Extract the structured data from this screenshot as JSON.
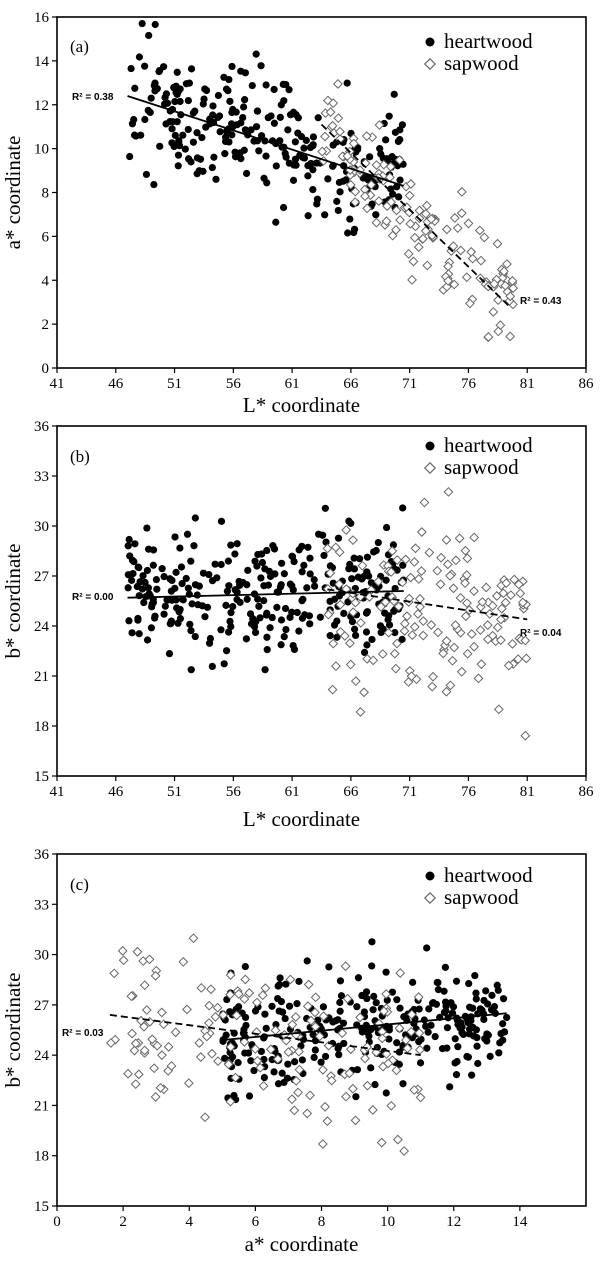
{
  "chart_data": [
    {
      "type": "scatter",
      "panel_label": "(a)",
      "xlabel": "L* coordinate",
      "ylabel": "a* coordinate",
      "xlim": [
        41,
        86
      ],
      "ylim": [
        0,
        16
      ],
      "xticks": [
        "41",
        "46",
        "51",
        "56",
        "61",
        "66",
        "71",
        "76",
        "81",
        "86"
      ],
      "yticks": [
        "0",
        "2",
        "4",
        "6",
        "8",
        "10",
        "12",
        "14",
        "16"
      ],
      "legend_position": "top-right",
      "series": [
        {
          "name": "heartwood",
          "marker": "filled-circle",
          "cloud": {
            "x_min": 47,
            "x_max": 70.5,
            "y_center_at_x_min": 12.2,
            "y_center_at_x_max": 8.6,
            "spread": 1.4
          },
          "count": 270
        },
        {
          "name": "sapwood",
          "marker": "open-diamond",
          "cloud": {
            "x_min": 63.5,
            "x_max": 80,
            "y_center_at_x_min": 10.2,
            "y_center_at_x_max": 3.2,
            "spread": 1.3
          },
          "count": 150
        }
      ],
      "trendlines": [
        {
          "series": "heartwood",
          "style": "solid",
          "from": [
            47,
            12.4
          ],
          "to": [
            70.5,
            8.3
          ],
          "r2_label": "R² = 0.38"
        },
        {
          "series": "sapwood",
          "style": "dashed",
          "from": [
            63.5,
            11.1
          ],
          "to": [
            79.5,
            2.8
          ],
          "r2_label": "R² = 0.43"
        }
      ]
    },
    {
      "type": "scatter",
      "panel_label": "(b)",
      "xlabel": "L* coordinate",
      "ylabel": "b* coordinate",
      "xlim": [
        41,
        86
      ],
      "ylim": [
        15,
        36
      ],
      "xticks": [
        "41",
        "46",
        "51",
        "56",
        "61",
        "66",
        "71",
        "76",
        "81",
        "86"
      ],
      "yticks": [
        "15",
        "18",
        "21",
        "24",
        "27",
        "30",
        "33",
        "36"
      ],
      "legend_position": "top-right",
      "series": [
        {
          "name": "heartwood",
          "marker": "filled-circle",
          "cloud": {
            "x_min": 47,
            "x_max": 70.5,
            "y_center_at_x_min": 25.8,
            "y_center_at_x_max": 26.1,
            "spread": 1.7
          },
          "count": 300
        },
        {
          "name": "sapwood",
          "marker": "open-diamond",
          "cloud": {
            "x_min": 64,
            "x_max": 81,
            "y_center_at_x_min": 25.8,
            "y_center_at_x_max": 25.0,
            "spread": 2.6
          },
          "count": 160
        }
      ],
      "trendlines": [
        {
          "series": "heartwood",
          "style": "solid",
          "from": [
            47,
            25.7
          ],
          "to": [
            70.5,
            26.1
          ],
          "r2_label": "R² = 0.00"
        },
        {
          "series": "sapwood",
          "style": "dashed",
          "from": [
            64,
            26.2
          ],
          "to": [
            81,
            24.4
          ],
          "r2_label": "R² = 0.04"
        }
      ]
    },
    {
      "type": "scatter",
      "panel_label": "(c)",
      "xlabel": "a* coordinate",
      "ylabel": "b* coordinate",
      "xlim": [
        0,
        16
      ],
      "ylim": [
        15,
        36
      ],
      "xticks": [
        "0",
        "2",
        "4",
        "6",
        "8",
        "10",
        "12",
        "14"
      ],
      "yticks": [
        "15",
        "18",
        "21",
        "24",
        "27",
        "30",
        "33",
        "36"
      ],
      "legend_position": "top-right",
      "series": [
        {
          "name": "heartwood",
          "marker": "filled-circle",
          "cloud": {
            "x_min": 5,
            "x_max": 13.6,
            "y_center_at_x_min": 24.9,
            "y_center_at_x_max": 26.5,
            "spread": 1.6
          },
          "count": 300
        },
        {
          "name": "sapwood",
          "marker": "open-diamond",
          "cloud": {
            "x_min": 1.6,
            "x_max": 11,
            "y_center_at_x_min": 26.4,
            "y_center_at_x_max": 24.0,
            "spread": 2.5
          },
          "count": 160
        }
      ],
      "trendlines": [
        {
          "series": "heartwood",
          "style": "solid",
          "from": [
            5,
            24.9
          ],
          "to": [
            13.6,
            26.5
          ],
          "r2_label": ""
        },
        {
          "series": "sapwood",
          "style": "dashed",
          "from": [
            1.6,
            26.4
          ],
          "to": [
            11,
            24.0
          ],
          "r2_label": "R² = 0.03"
        }
      ]
    }
  ]
}
